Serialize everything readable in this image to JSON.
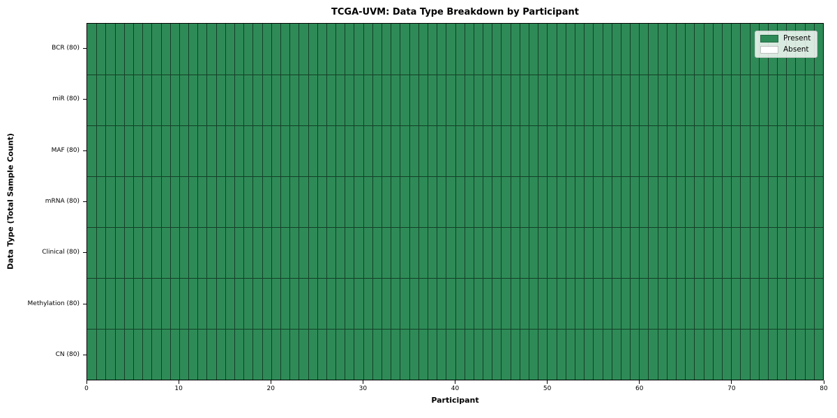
{
  "figure": {
    "title": "TCGA-UVM: Data Type Breakdown by Participant"
  },
  "chart_data": {
    "type": "heatmap",
    "title": "TCGA-UVM: Data Type Breakdown by Participant",
    "xlabel": "Participant",
    "ylabel": "Data Type (Total Sample Count)",
    "x_range": [
      0,
      80
    ],
    "x_ticks": [
      0,
      10,
      20,
      30,
      40,
      50,
      60,
      70,
      80
    ],
    "n_participants": 80,
    "row_labels": [
      "BCR (80)",
      "miR (80)",
      "MAF (80)",
      "mRNA (80)",
      "Clinical (80)",
      "Methylation (80)",
      "CN (80)"
    ],
    "series": [
      {
        "name": "BCR (80)",
        "present": 80,
        "absent": 0
      },
      {
        "name": "miR (80)",
        "present": 80,
        "absent": 0
      },
      {
        "name": "MAF (80)",
        "present": 80,
        "absent": 0
      },
      {
        "name": "mRNA (80)",
        "present": 80,
        "absent": 0
      },
      {
        "name": "Clinical (80)",
        "present": 80,
        "absent": 0
      },
      {
        "name": "Methylation (80)",
        "present": 80,
        "absent": 0
      },
      {
        "name": "CN (80)",
        "present": 80,
        "absent": 0
      }
    ],
    "all_cells_state": "Present",
    "legend": {
      "position": "upper right",
      "items": [
        {
          "label": "Present",
          "color": "#2e8b57"
        },
        {
          "label": "Absent",
          "color": "#ffffff"
        }
      ]
    },
    "colors": {
      "present": "#2e8b57",
      "absent": "#ffffff",
      "cell_border": "rgba(0,0,0,0.55)"
    }
  }
}
